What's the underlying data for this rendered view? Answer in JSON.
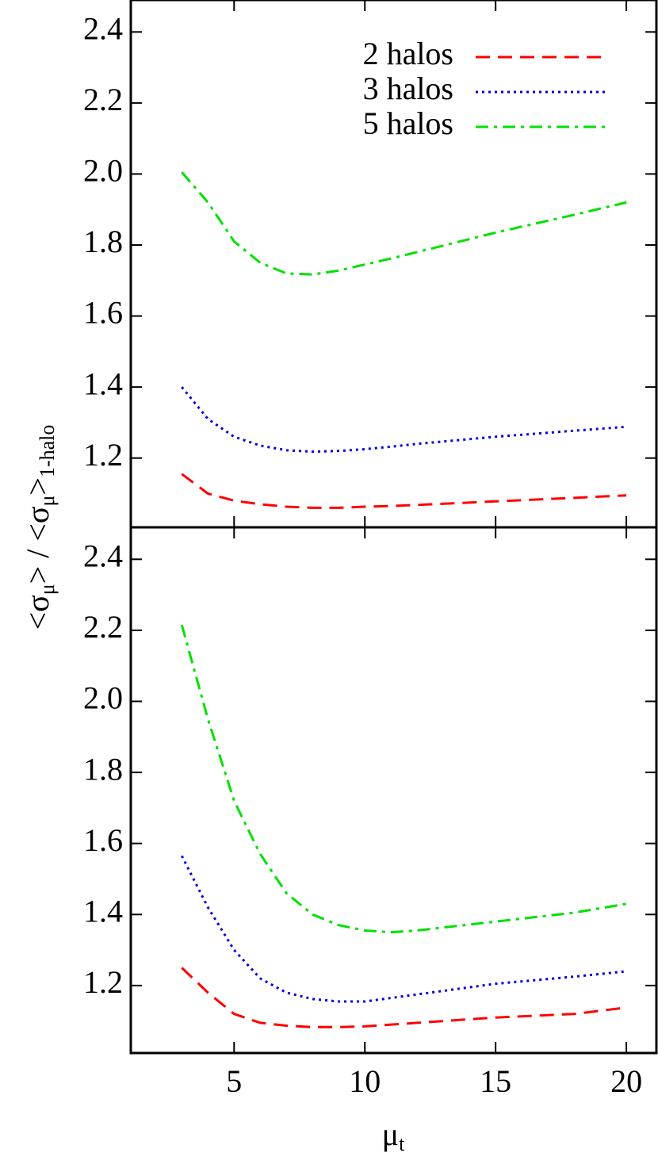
{
  "chart_data": [
    {
      "type": "line",
      "ylabel": [
        {
          "text": "<σ",
          "sub": false
        },
        {
          "text": "μ",
          "sub": true
        },
        {
          "text": "> / <σ",
          "sub": false
        },
        {
          "text": "μ",
          "sub": true
        },
        {
          "text": ">",
          "sub": false
        },
        {
          "text": "1-halo",
          "sub": true
        }
      ],
      "x": [
        3,
        4,
        5,
        6,
        7,
        8,
        9,
        10,
        11,
        12,
        15,
        18,
        20
      ],
      "series": [
        {
          "name": "2 halos",
          "color": "#ff0000",
          "linestyle": "dashed",
          "values": [
            1.155,
            1.1,
            1.08,
            1.07,
            1.063,
            1.06,
            1.06,
            1.063,
            1.065,
            1.068,
            1.078,
            1.088,
            1.095
          ]
        },
        {
          "name": "3 halos",
          "color": "#0000dd",
          "linestyle": "dotted",
          "values": [
            1.4,
            1.31,
            1.26,
            1.235,
            1.222,
            1.218,
            1.22,
            1.225,
            1.232,
            1.24,
            1.26,
            1.277,
            1.288
          ]
        },
        {
          "name": "5 halos",
          "color": "#00e000",
          "linestyle": "dashdot",
          "values": [
            2.005,
            1.92,
            1.81,
            1.75,
            1.72,
            1.717,
            1.728,
            1.745,
            1.762,
            1.78,
            1.835,
            1.885,
            1.92
          ]
        }
      ],
      "xlim": [
        1.05,
        21.15
      ],
      "ylim": [
        1.005,
        2.49
      ],
      "xticks": [
        5,
        10,
        15,
        20
      ],
      "yticks": [
        1.2,
        1.4,
        1.6,
        1.8,
        {
          "value": 2,
          "label": "2.0"
        },
        2.2,
        2.4
      ],
      "legend": "upper right"
    },
    {
      "type": "line",
      "xlabel": [
        {
          "text": "μ",
          "sub": false
        },
        {
          "text": "t",
          "sub": true
        }
      ],
      "x": [
        3,
        4,
        5,
        6,
        7,
        8,
        9,
        10,
        11,
        12,
        15,
        18,
        20
      ],
      "series": [
        {
          "color": "#ff0000",
          "linestyle": "dashed",
          "values": [
            1.25,
            1.18,
            1.12,
            1.095,
            1.087,
            1.083,
            1.083,
            1.085,
            1.09,
            1.095,
            1.11,
            1.12,
            1.138
          ]
        },
        {
          "color": "#0000dd",
          "linestyle": "dotted",
          "values": [
            1.565,
            1.42,
            1.3,
            1.22,
            1.18,
            1.162,
            1.155,
            1.155,
            1.165,
            1.175,
            1.205,
            1.225,
            1.24
          ]
        },
        {
          "color": "#00e000",
          "linestyle": "dashdot",
          "values": [
            2.215,
            1.95,
            1.72,
            1.57,
            1.46,
            1.4,
            1.37,
            1.355,
            1.35,
            1.355,
            1.38,
            1.405,
            1.43
          ]
        }
      ],
      "xlim": [
        1.05,
        21.15
      ],
      "ylim": [
        1.01,
        2.49
      ],
      "xticks": [
        5,
        10,
        15,
        20
      ],
      "yticks": [
        1.2,
        1.4,
        1.6,
        1.8,
        {
          "value": 2,
          "label": "2.0"
        },
        2.2,
        2.4
      ]
    }
  ]
}
